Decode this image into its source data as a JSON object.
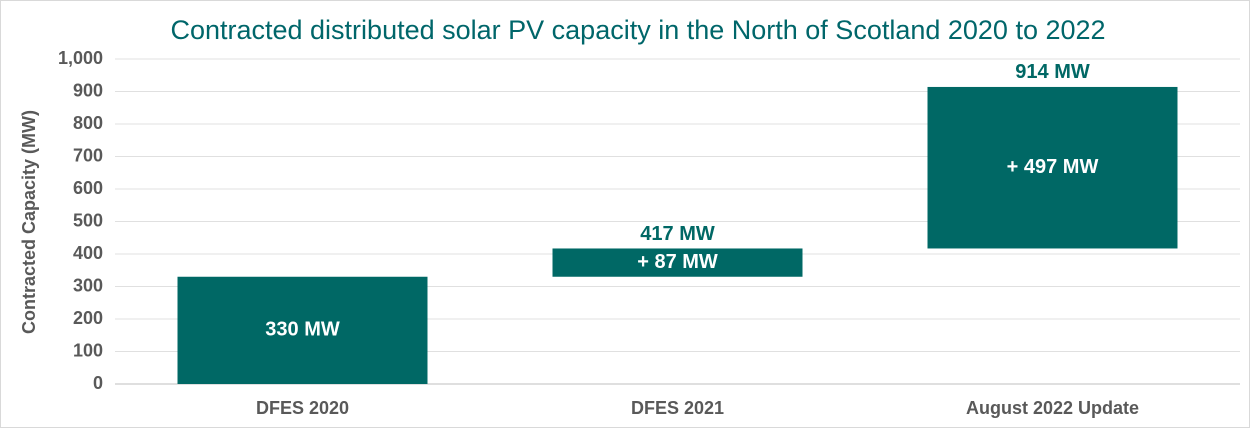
{
  "chart_data": {
    "type": "waterfall",
    "title": "Contracted distributed solar PV capacity in the North of Scotland 2020 to 2022",
    "y_label": "Contracted Capacity (MW)",
    "categories": [
      "DFES 2020",
      "DFES 2021",
      "August 2022 Update"
    ],
    "values": [
      330,
      87,
      497
    ],
    "value_labels": [
      "330 MW",
      "+ 87 MW",
      "+ 497 MW"
    ],
    "total_labels": [
      null,
      "417 MW",
      "914 MW"
    ],
    "color": "#006865",
    "ylim": [
      0,
      1000
    ],
    "yticks": [
      0,
      100,
      200,
      300,
      400,
      500,
      600,
      700,
      800,
      900,
      {
        "value": 1000,
        "label": "1,000"
      }
    ],
    "grid": true
  }
}
